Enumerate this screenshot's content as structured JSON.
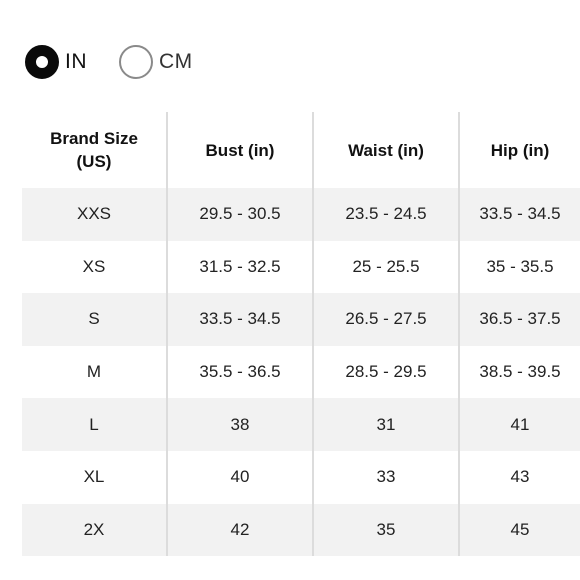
{
  "unit_toggle": {
    "options": [
      {
        "label": "IN",
        "selected": true
      },
      {
        "label": "CM",
        "selected": false
      }
    ]
  },
  "table": {
    "headers": [
      "Brand Size (US)",
      "Bust (in)",
      "Waist (in)",
      "Hip (in)"
    ],
    "rows": [
      [
        "XXS",
        "29.5 - 30.5",
        "23.5 - 24.5",
        "33.5 - 34.5"
      ],
      [
        "XS",
        "31.5 - 32.5",
        "25 - 25.5",
        "35 - 35.5"
      ],
      [
        "S",
        "33.5 - 34.5",
        "26.5 - 27.5",
        "36.5 - 37.5"
      ],
      [
        "M",
        "35.5 - 36.5",
        "28.5 - 29.5",
        "38.5 - 39.5"
      ],
      [
        "L",
        "38",
        "31",
        "41"
      ],
      [
        "XL",
        "40",
        "33",
        "43"
      ],
      [
        "2X",
        "42",
        "35",
        "45"
      ]
    ]
  }
}
